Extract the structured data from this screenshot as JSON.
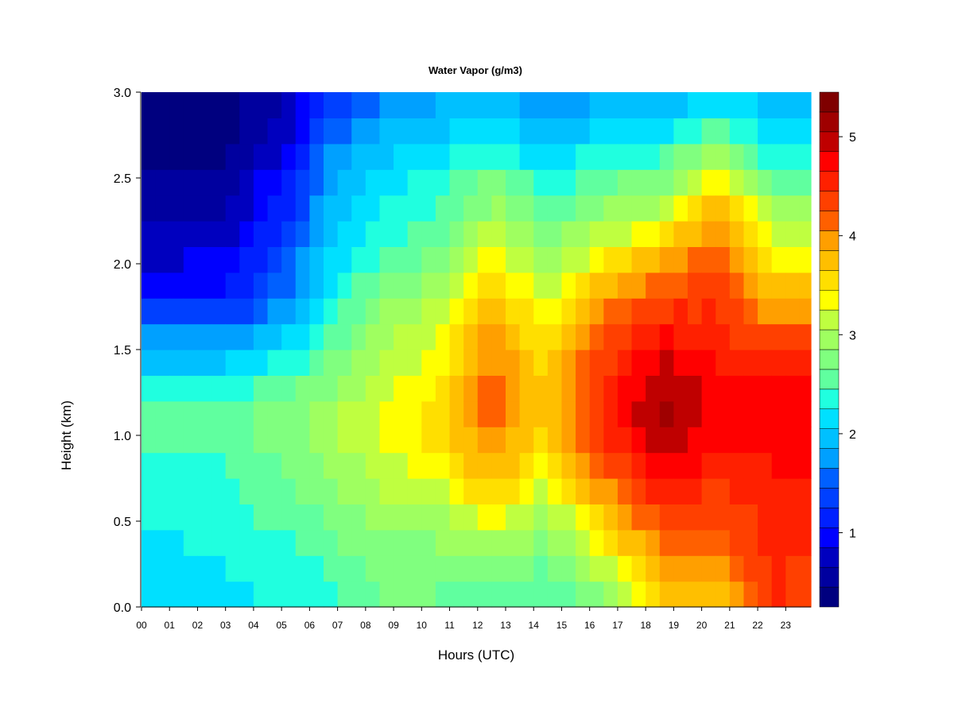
{
  "chart_data": {
    "type": "heatmap",
    "title": "Water Vapor (g/m3)",
    "xlabel": "Hours (UTC)",
    "ylabel": "Height (km)",
    "xlim": [
      0,
      23.9
    ],
    "ylim": [
      0,
      3.0
    ],
    "x_ticks": [
      "00",
      "01",
      "02",
      "03",
      "04",
      "05",
      "06",
      "07",
      "08",
      "09",
      "10",
      "11",
      "12",
      "13",
      "14",
      "15",
      "16",
      "17",
      "18",
      "19",
      "20",
      "21",
      "22",
      "23"
    ],
    "y_ticks": [
      "0.0",
      "0.5",
      "1.0",
      "1.5",
      "2.0",
      "2.5",
      "3.0"
    ],
    "colorbar": {
      "range": [
        0.25,
        5.45
      ],
      "ticks": [
        "1",
        "2",
        "3",
        "4",
        "5"
      ],
      "levels": 26,
      "colors": [
        "#00007F",
        "#00009F",
        "#0000BF",
        "#0000DF",
        "#0000FF",
        "#0020FF",
        "#0040FF",
        "#0060FF",
        "#0080FF",
        "#00A0FF",
        "#00C0FF",
        "#00E0FF",
        "#20FFDF",
        "#40FFBF",
        "#60FF9F",
        "#80FF7F",
        "#9FFF60",
        "#BFFF40",
        "#DFFF20",
        "#FFFF00",
        "#FFDF00",
        "#FFBF00",
        "#FF9F00",
        "#FF8000",
        "#FF6000",
        "#FF4000",
        "#FF2000",
        "#FF0000",
        "#DF0000",
        "#BF0000",
        "#9F0000",
        "#7F0000"
      ]
    },
    "heights_km": [
      0.0,
      0.15,
      0.3,
      0.45,
      0.6,
      0.75,
      0.9,
      1.05,
      1.2,
      1.35,
      1.5,
      1.65,
      1.8,
      1.95,
      2.1,
      2.25,
      2.4,
      2.55,
      2.7,
      2.85,
      3.0
    ],
    "hours": [
      0,
      0.5,
      1,
      1.5,
      2,
      2.5,
      3,
      3.5,
      4,
      4.5,
      5,
      5.5,
      6,
      6.5,
      7,
      7.5,
      8,
      8.5,
      9,
      9.5,
      10,
      10.5,
      11,
      11.5,
      12,
      12.5,
      13,
      13.5,
      14,
      14.5,
      15,
      15.5,
      16,
      16.5,
      17,
      17.5,
      18,
      18.5,
      19,
      19.5,
      20,
      20.5,
      21,
      21.5,
      22,
      22.5,
      23,
      23.5,
      23.9
    ],
    "profiles": {
      "0": [
        2.1,
        2.1,
        2.2,
        2.2,
        2.3,
        2.4,
        2.4,
        2.5,
        2.4,
        2.2,
        1.9,
        1.5,
        1.1,
        0.9,
        0.7,
        0.6,
        0.5,
        0.4,
        0.3,
        0.25,
        0.25
      ],
      "3": [
        2.2,
        2.2,
        2.3,
        2.3,
        2.4,
        2.4,
        2.5,
        2.6,
        2.5,
        2.2,
        1.9,
        1.4,
        1.1,
        1.0,
        0.8,
        0.7,
        0.6,
        0.5,
        0.4,
        0.35,
        0.3
      ],
      "5.5": [
        2.3,
        2.3,
        2.4,
        2.5,
        2.6,
        2.7,
        2.7,
        2.8,
        2.7,
        2.5,
        2.2,
        2.0,
        1.8,
        1.6,
        1.5,
        1.3,
        1.2,
        1.1,
        0.9,
        0.8,
        0.7
      ],
      "6.5": [
        2.4,
        2.4,
        2.5,
        2.6,
        2.7,
        2.8,
        2.9,
        3.0,
        2.9,
        2.7,
        2.5,
        2.3,
        2.2,
        2.1,
        2.0,
        1.9,
        1.8,
        1.7,
        1.5,
        1.3,
        1.2
      ],
      "8.5": [
        2.6,
        2.7,
        2.8,
        2.9,
        3.0,
        3.1,
        3.2,
        3.3,
        3.2,
        3.1,
        3.0,
        2.9,
        2.8,
        2.6,
        2.4,
        2.3,
        2.2,
        2.1,
        1.9,
        1.8,
        1.6
      ],
      "10.5": [
        2.6,
        2.7,
        2.8,
        2.9,
        3.1,
        3.3,
        3.5,
        3.6,
        3.5,
        3.4,
        3.3,
        3.2,
        3.0,
        2.8,
        2.6,
        2.5,
        2.4,
        2.3,
        2.1,
        1.9,
        1.8
      ],
      "12.5": [
        2.5,
        2.7,
        2.9,
        3.2,
        3.5,
        3.7,
        3.9,
        4.1,
        4.2,
        4.1,
        4.0,
        3.9,
        3.7,
        3.5,
        3.3,
        3.0,
        2.8,
        2.6,
        2.3,
        2.1,
        1.9
      ],
      "14.5": [
        2.4,
        2.5,
        2.7,
        2.9,
        3.1,
        3.3,
        3.5,
        3.6,
        3.7,
        3.6,
        3.5,
        3.4,
        3.2,
        3.0,
        2.8,
        2.6,
        2.4,
        2.2,
        2.0,
        1.8,
        1.6
      ],
      "16.5": [
        2.7,
        3.0,
        3.3,
        3.5,
        3.8,
        4.1,
        4.3,
        4.5,
        4.5,
        4.4,
        4.3,
        4.1,
        3.9,
        3.6,
        3.3,
        3.0,
        2.7,
        2.5,
        2.2,
        2.0,
        1.8
      ],
      "18.5": [
        3.5,
        3.8,
        4.0,
        4.2,
        4.4,
        4.7,
        4.9,
        5.1,
        5.1,
        5.0,
        4.8,
        4.6,
        4.3,
        4.0,
        3.6,
        3.2,
        2.9,
        2.6,
        2.3,
        2.0,
        1.8
      ],
      "20.5": [
        3.6,
        3.8,
        4.0,
        4.2,
        4.3,
        4.5,
        4.7,
        4.8,
        4.8,
        4.7,
        4.6,
        4.5,
        4.4,
        4.3,
        4.2,
        4.0,
        3.7,
        3.3,
        2.8,
        2.4,
        2.1
      ],
      "22.5": [
        4.5,
        4.5,
        4.5,
        4.5,
        4.5,
        4.6,
        4.7,
        4.9,
        4.8,
        4.6,
        4.4,
        4.1,
        3.8,
        3.5,
        3.3,
        3.1,
        2.8,
        2.5,
        2.2,
        2.0,
        1.9
      ],
      "23.9": [
        4.4,
        4.4,
        4.4,
        4.5,
        4.5,
        4.6,
        4.7,
        4.9,
        4.8,
        4.6,
        4.4,
        4.1,
        3.8,
        3.5,
        3.2,
        3.0,
        2.7,
        2.4,
        2.2,
        2.0,
        1.9
      ]
    }
  }
}
